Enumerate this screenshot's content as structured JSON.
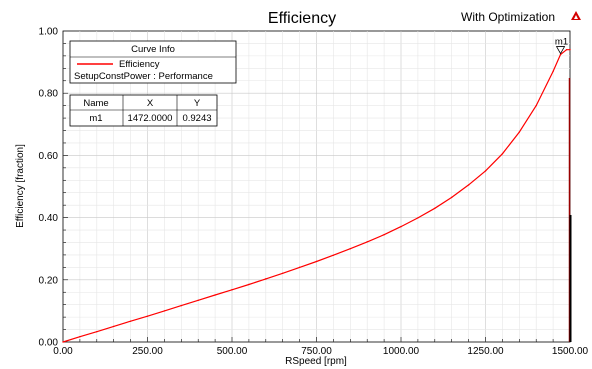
{
  "header": {
    "title": "Efficiency",
    "subtitle": "With Optimization",
    "logo_icon": "ansys-logo-icon"
  },
  "chart_data": {
    "type": "line",
    "title": "Efficiency",
    "xlabel": "RSpeed [rpm]",
    "ylabel": "Efficiency [fraction]",
    "xlim": [
      0,
      1500
    ],
    "ylim": [
      0,
      1.0
    ],
    "x_ticks": [
      "0.00",
      "250.00",
      "500.00",
      "750.00",
      "1000.00",
      "1250.00",
      "1500.00"
    ],
    "y_ticks": [
      "0.00",
      "0.20",
      "0.40",
      "0.60",
      "0.80",
      "1.00"
    ],
    "grid": true,
    "series": [
      {
        "name": "Efficiency",
        "color": "#ff0000",
        "x": [
          0,
          50,
          100,
          150,
          200,
          250,
          300,
          350,
          400,
          450,
          500,
          550,
          600,
          650,
          700,
          750,
          800,
          850,
          900,
          950,
          1000,
          1050,
          1100,
          1150,
          1200,
          1250,
          1300,
          1350,
          1400,
          1450,
          1472,
          1490,
          1500
        ],
        "y": [
          0.0,
          0.017,
          0.033,
          0.05,
          0.067,
          0.083,
          0.1,
          0.117,
          0.134,
          0.151,
          0.168,
          0.185,
          0.203,
          0.221,
          0.24,
          0.259,
          0.279,
          0.3,
          0.322,
          0.345,
          0.371,
          0.399,
          0.43,
          0.465,
          0.505,
          0.55,
          0.605,
          0.675,
          0.76,
          0.87,
          0.9243,
          0.94,
          0.94
        ]
      }
    ],
    "legend": {
      "header": "Curve Info",
      "entry_label": "Efficiency",
      "entry_sub": "SetupConstPower : Performance",
      "placement": "top-left"
    },
    "marker_table": {
      "columns": [
        "Name",
        "X",
        "Y"
      ],
      "rows": [
        [
          "m1",
          "1472.0000",
          "0.9243"
        ]
      ]
    },
    "marker": {
      "name": "m1",
      "x": 1472,
      "y": 0.9243
    }
  }
}
